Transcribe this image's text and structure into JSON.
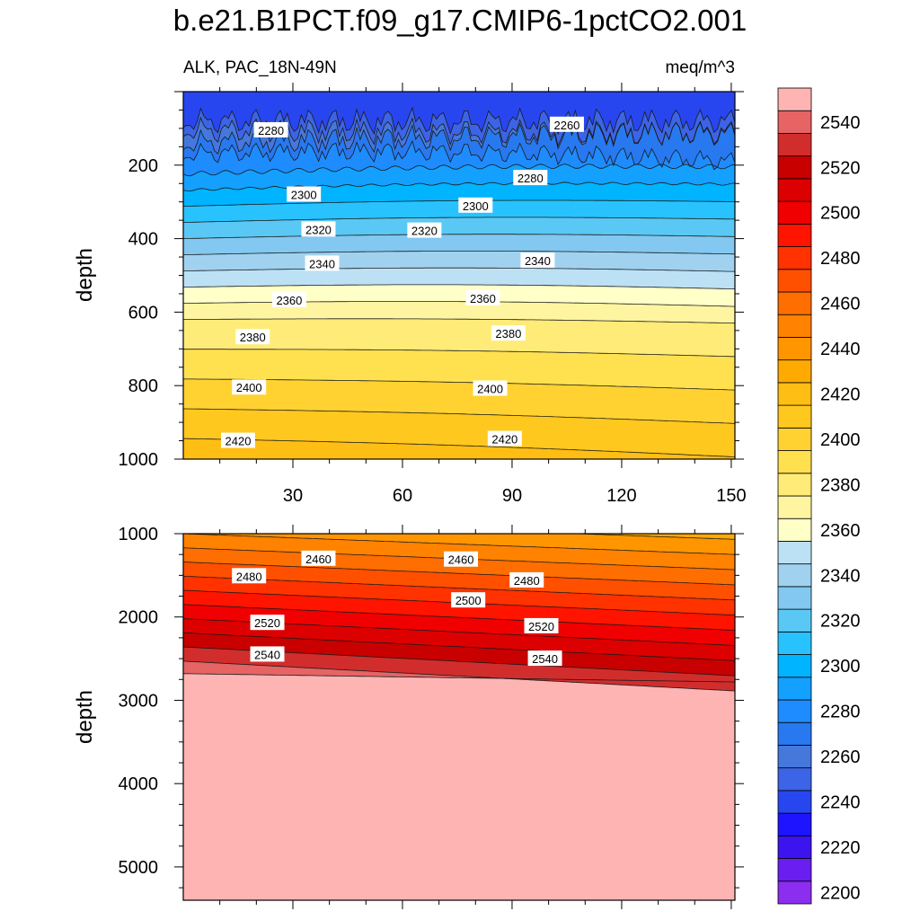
{
  "title": "b.e21.B1PCT.f09_g17.CMIP6-1pctCO2.001",
  "subtitle_left": "ALK, PAC_18N-49N",
  "subtitle_right": "meq/m^3",
  "chart_data": [
    {
      "type": "contour",
      "panel": "upper",
      "ylabel": "depth",
      "xlabel": "",
      "xlim": [
        0,
        151
      ],
      "ylim": [
        1000,
        0
      ],
      "xticks": [
        30,
        60,
        90,
        120,
        150
      ],
      "yticks": [
        200,
        400,
        600,
        800,
        1000
      ],
      "contour_labels": [
        {
          "value": "2280",
          "x": 24,
          "depth": 105
        },
        {
          "value": "2260",
          "x": 105,
          "depth": 90
        },
        {
          "value": "2280",
          "x": 95,
          "depth": 235
        },
        {
          "value": "2300",
          "x": 33,
          "depth": 280
        },
        {
          "value": "2300",
          "x": 80,
          "depth": 310
        },
        {
          "value": "2320",
          "x": 37,
          "depth": 375
        },
        {
          "value": "2320",
          "x": 66,
          "depth": 378
        },
        {
          "value": "2340",
          "x": 38,
          "depth": 468
        },
        {
          "value": "2340",
          "x": 97,
          "depth": 460
        },
        {
          "value": "2360",
          "x": 29,
          "depth": 567
        },
        {
          "value": "2360",
          "x": 82,
          "depth": 562
        },
        {
          "value": "2380",
          "x": 19,
          "depth": 668
        },
        {
          "value": "2380",
          "x": 89,
          "depth": 658
        },
        {
          "value": "2400",
          "x": 18,
          "depth": 805
        },
        {
          "value": "2400",
          "x": 84,
          "depth": 808
        },
        {
          "value": "2420",
          "x": 15,
          "depth": 950
        },
        {
          "value": "2420",
          "x": 88,
          "depth": 945
        }
      ]
    },
    {
      "type": "contour",
      "panel": "lower",
      "ylabel": "depth",
      "xlabel": "",
      "xlim": [
        0,
        151
      ],
      "ylim": [
        5400,
        1000
      ],
      "yticks": [
        1000,
        2000,
        3000,
        4000,
        5000
      ],
      "contour_labels": [
        {
          "value": "2460",
          "x": 37,
          "depth": 1300
        },
        {
          "value": "2460",
          "x": 76,
          "depth": 1310
        },
        {
          "value": "2480",
          "x": 18,
          "depth": 1510
        },
        {
          "value": "2480",
          "x": 94,
          "depth": 1560
        },
        {
          "value": "2500",
          "x": 78,
          "depth": 1800
        },
        {
          "value": "2520",
          "x": 23,
          "depth": 2070
        },
        {
          "value": "2520",
          "x": 98,
          "depth": 2110
        },
        {
          "value": "2540",
          "x": 23,
          "depth": 2450
        },
        {
          "value": "2540",
          "x": 99,
          "depth": 2500
        }
      ]
    }
  ],
  "colorbar": {
    "levels": [
      2200,
      2210,
      2220,
      2230,
      2240,
      2250,
      2260,
      2270,
      2280,
      2290,
      2300,
      2310,
      2320,
      2330,
      2340,
      2350,
      2360,
      2370,
      2380,
      2390,
      2400,
      2410,
      2420,
      2430,
      2440,
      2450,
      2460,
      2470,
      2480,
      2490,
      2500,
      2510,
      2520,
      2530,
      2540,
      2550
    ],
    "labels": [
      "2200",
      "2220",
      "2240",
      "2260",
      "2280",
      "2300",
      "2320",
      "2340",
      "2360",
      "2380",
      "2400",
      "2420",
      "2440",
      "2460",
      "2480",
      "2500",
      "2520",
      "2540"
    ],
    "colors": [
      "#8c2ef0",
      "#6a1ef0",
      "#3c14f0",
      "#1e14ff",
      "#2846f0",
      "#3c64e6",
      "#4678dc",
      "#2878f0",
      "#1e8cff",
      "#14a0ff",
      "#00b4ff",
      "#28c3ff",
      "#5ac8f5",
      "#82c8f0",
      "#a0d2f0",
      "#bce1f5",
      "#ffffc8",
      "#fff5a0",
      "#ffeb78",
      "#ffe150",
      "#ffd232",
      "#ffc81e",
      "#ffbe14",
      "#ffaa00",
      "#ff9600",
      "#ff8200",
      "#ff6e00",
      "#ff5000",
      "#ff3200",
      "#ff1400",
      "#f00000",
      "#dc0000",
      "#c80000",
      "#d22d2d",
      "#e66464",
      "#ffb4b4"
    ]
  }
}
